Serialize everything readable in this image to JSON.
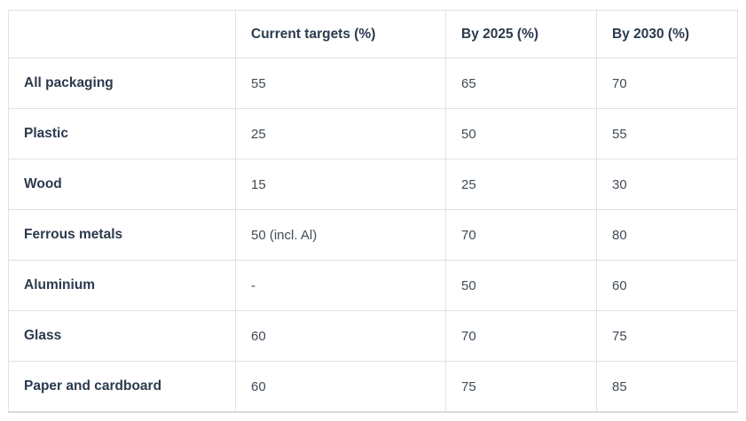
{
  "table": {
    "columns": [
      "",
      "Current targets (%)",
      "By 2025 (%)",
      "By 2030 (%)"
    ],
    "rows": [
      {
        "label": "All packaging",
        "values": [
          "55",
          "65",
          "70"
        ]
      },
      {
        "label": "Plastic",
        "values": [
          "25",
          "50",
          "55"
        ]
      },
      {
        "label": "Wood",
        "values": [
          "15",
          "25",
          "30"
        ]
      },
      {
        "label": "Ferrous metals",
        "values": [
          "50 (incl. Al)",
          "70",
          "80"
        ]
      },
      {
        "label": "Aluminium",
        "values": [
          "-",
          "50",
          "60"
        ]
      },
      {
        "label": "Glass",
        "values": [
          "60",
          "70",
          "75"
        ]
      },
      {
        "label": "Paper and cardboard",
        "values": [
          "60",
          "75",
          "85"
        ]
      }
    ]
  },
  "colors": {
    "border": "#dee2e6",
    "bottom_rule": "#d7dbdf",
    "header_text": "#2b3a4d",
    "value_text": "#404b57",
    "background": "#ffffff"
  },
  "chart_data": {
    "type": "table",
    "title": "",
    "columns": [
      "",
      "Current targets (%)",
      "By 2025 (%)",
      "By 2030 (%)"
    ],
    "categories": [
      "All packaging",
      "Plastic",
      "Wood",
      "Ferrous metals",
      "Aluminium",
      "Glass",
      "Paper and cardboard"
    ],
    "series": [
      {
        "name": "Current targets (%)",
        "values": [
          "55",
          "25",
          "15",
          "50 (incl. Al)",
          "-",
          "60",
          "60"
        ]
      },
      {
        "name": "By 2025 (%)",
        "values": [
          65,
          50,
          25,
          70,
          50,
          70,
          75
        ]
      },
      {
        "name": "By 2030 (%)",
        "values": [
          70,
          55,
          30,
          80,
          60,
          75,
          85
        ]
      }
    ],
    "layout": {
      "grid": "full-borders",
      "legend": "none",
      "values_unit": "percent"
    }
  }
}
